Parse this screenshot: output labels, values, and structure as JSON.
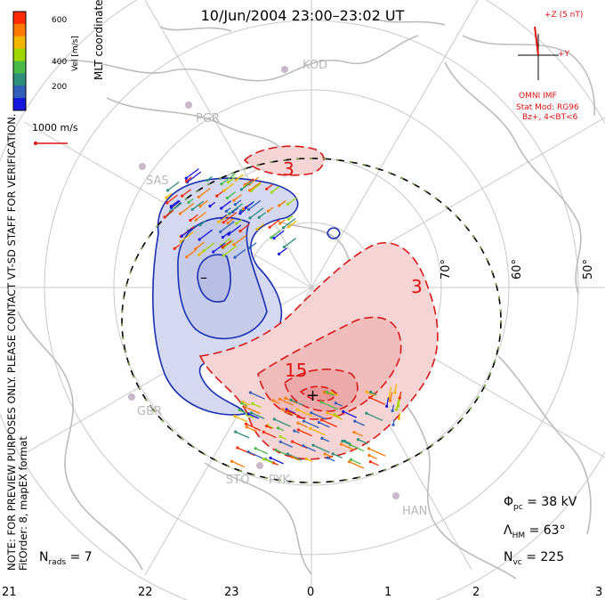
{
  "title": "10/Jun/2004 23:00–23:02 UT",
  "note": {
    "line1": "NOTE: FOR PREVIEW PURPOSES ONLY. PLEASE CONTACT VT-SD STAFF FOR VERIFICATION.",
    "line2": "FitOrder: 8, mapEX format"
  },
  "colorbar": {
    "label": "Vel [m/s]",
    "coords": "MLT coordinates",
    "ticks": [
      "600",
      "400",
      "200"
    ],
    "colors": [
      "#ff2a00",
      "#ff7a00",
      "#f2b600",
      "#9ed800",
      "#49b948",
      "#2f8f7b",
      "#2f5fb8",
      "#1515e0"
    ]
  },
  "reference_vector": "1000 m/s",
  "mlt_labels": [
    "21",
    "22",
    "23",
    "0",
    "1",
    "2",
    "3"
  ],
  "lat_labels": [
    "70°",
    "60°",
    "50°"
  ],
  "stations": [
    "KOD",
    "PGR",
    "SAS",
    "GBR",
    "STO",
    "PYK",
    "HAN"
  ],
  "contour_labels": [
    "3",
    "3",
    "15",
    "+",
    "–"
  ],
  "imf": {
    "z_label": "+Z (5 nT)",
    "y_label": "+Y",
    "model_title": "OMNI IMF",
    "model_line1": "Stat Mod: RG96",
    "model_line2": "Bz+, 4<BT<6"
  },
  "parameters": {
    "phi_pc": "= 38 kV",
    "lambda_hm": "= 63°",
    "n_vc": "= 225",
    "n_rads": "= 7"
  },
  "colors": {
    "negative_fill": "#d4d8f0",
    "positive_fill": "#f4c8c8",
    "negative_line": "#1a2fb0",
    "positive_line": "#d81818",
    "land": "#bcbcbc"
  }
}
